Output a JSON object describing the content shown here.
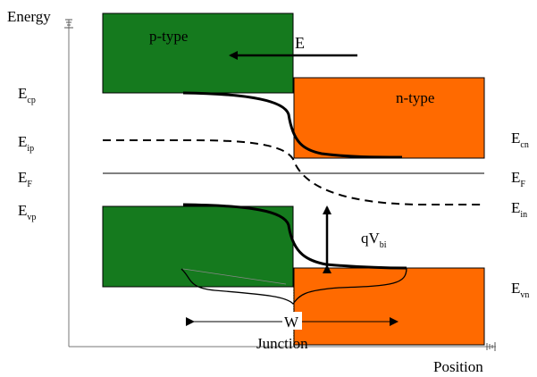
{
  "axes": {
    "y_label": "Energy",
    "x_label": "Position"
  },
  "regions": {
    "p_label": "p-type",
    "n_label": "n-type",
    "junction_label": "Junction",
    "p_color": "#157a1e",
    "n_color": "#ff6a00",
    "depletion_stripe_color": "#e8c27a"
  },
  "field": {
    "label": "E"
  },
  "width_marker": {
    "label": "W"
  },
  "built_in": {
    "prefix": "qV",
    "subscript": "bi"
  },
  "left_labels": {
    "ecp": {
      "main": "E",
      "sub": "cp"
    },
    "eip": {
      "main": "E",
      "sub": "ip"
    },
    "ef": {
      "main": "E",
      "sub": "F"
    },
    "evp": {
      "main": "E",
      "sub": "vp"
    }
  },
  "right_labels": {
    "ecn": {
      "main": "E",
      "sub": "cn"
    },
    "ef": {
      "main": "E",
      "sub": "F"
    },
    "ein": {
      "main": "E",
      "sub": "in"
    },
    "evn": {
      "main": "E",
      "sub": "vn"
    }
  }
}
